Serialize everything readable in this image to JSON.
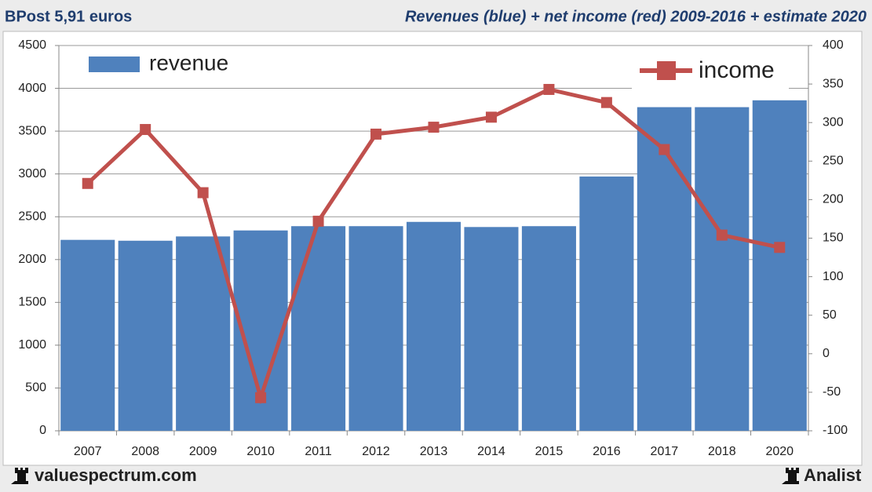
{
  "chart_data": {
    "type": "bar",
    "title": "BPost 5,91 euros",
    "subtitle": "Revenues (blue) + net income (red) 2009-2016 + estimate 2020",
    "categories": [
      "2007",
      "2008",
      "2009",
      "2010",
      "2011",
      "2012",
      "2013",
      "2014",
      "2015",
      "2016",
      "2017",
      "2018",
      "2020"
    ],
    "series": [
      {
        "name": "revenue",
        "type": "bar",
        "color": "#4f81bd",
        "values": [
          2230,
          2220,
          2270,
          2340,
          2390,
          2390,
          2440,
          2380,
          2390,
          2970,
          3780,
          3780,
          3860
        ]
      },
      {
        "name": "income",
        "type": "line",
        "axis": "y2",
        "color": "#c0504d",
        "values": [
          221,
          291,
          209,
          -57,
          172,
          285,
          294,
          307,
          343,
          326,
          265,
          154,
          138
        ]
      }
    ],
    "ylim": [
      0,
      4500
    ],
    "yticks": [
      0,
      500,
      1000,
      1500,
      2000,
      2500,
      3000,
      3500,
      4000,
      4500
    ],
    "y2lim": [
      -100,
      400
    ],
    "y2ticks": [
      -100,
      -50,
      0,
      50,
      100,
      150,
      200,
      250,
      300,
      350,
      400
    ],
    "grid": true
  },
  "footer": {
    "left": "valuespectrum.com",
    "right": "Analist"
  }
}
